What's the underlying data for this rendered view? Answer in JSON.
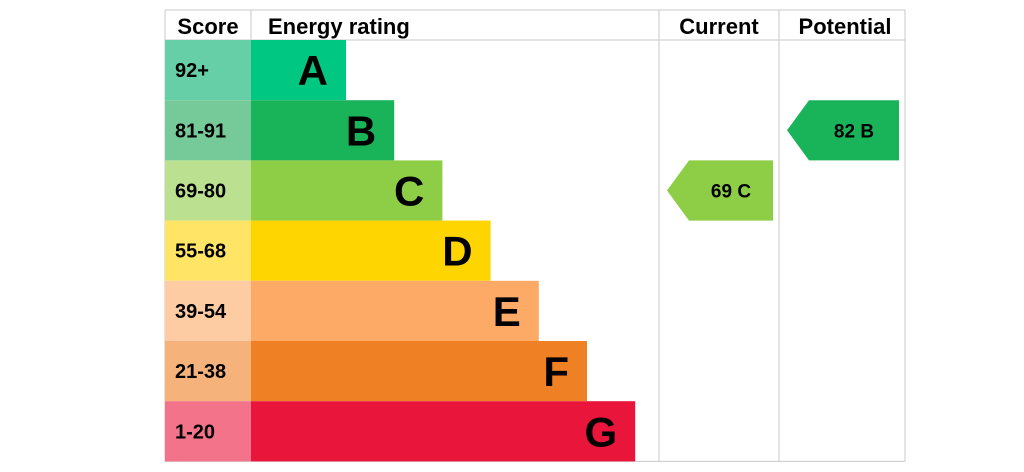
{
  "header": {
    "score_label": "Score",
    "rating_label": "Energy rating",
    "current_label": "Current",
    "potential_label": "Potential"
  },
  "chart_data": {
    "type": "bar",
    "title": "",
    "bands": [
      {
        "letter": "A",
        "score_range": "92+",
        "color": "#00c781",
        "score_bg": "#66cfa7"
      },
      {
        "letter": "B",
        "score_range": "81-91",
        "color": "#19b459",
        "score_bg": "#76ca9a"
      },
      {
        "letter": "C",
        "score_range": "69-80",
        "color": "#8dce46",
        "score_bg": "#bbe190"
      },
      {
        "letter": "D",
        "score_range": "55-68",
        "color": "#ffd500",
        "score_bg": "#ffe466"
      },
      {
        "letter": "E",
        "score_range": "39-54",
        "color": "#fcaa65",
        "score_bg": "#fdcca3"
      },
      {
        "letter": "F",
        "score_range": "21-38",
        "color": "#ef8023",
        "score_bg": "#f5b37b"
      },
      {
        "letter": "G",
        "score_range": "1-20",
        "color": "#e9153b",
        "score_bg": "#f2738a"
      }
    ],
    "current": {
      "score": 69,
      "band": "C",
      "label": "69  C",
      "color": "#8dce46"
    },
    "potential": {
      "score": 82,
      "band": "B",
      "label": "82  B",
      "color": "#19b459"
    }
  }
}
